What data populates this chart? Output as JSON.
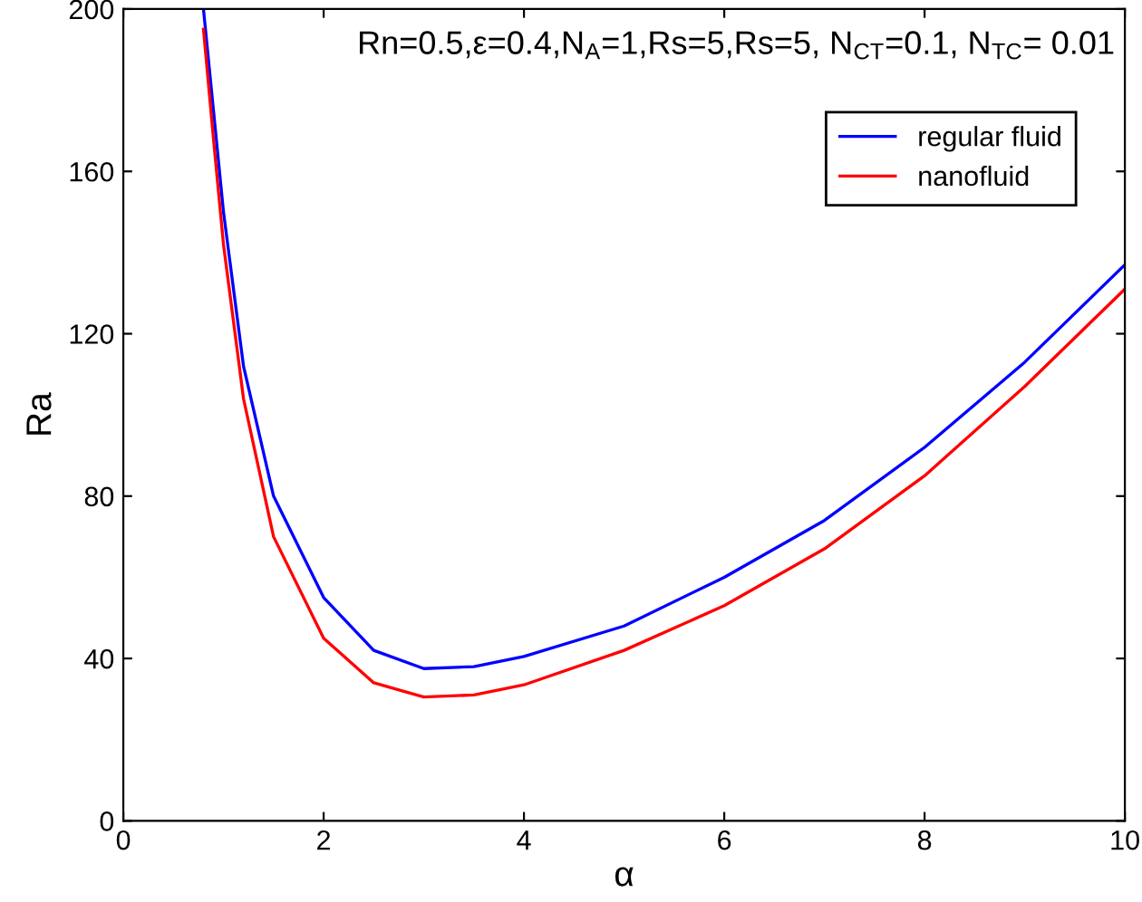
{
  "chart_data": {
    "type": "line",
    "xlabel": "α",
    "ylabel": "Ra",
    "xlim": [
      0,
      10
    ],
    "ylim": [
      0,
      200
    ],
    "xticks": [
      0,
      2,
      4,
      6,
      8,
      10
    ],
    "yticks": [
      0,
      40,
      80,
      120,
      160,
      200
    ],
    "grid": false,
    "legend": "top right",
    "annotations": [
      "Rn=0.5,ε=0.4,N$_{A}$=1,Rs=5,Rs=5, N$_{CT}$=0.1, N$_{TC}$= 0.01"
    ],
    "x": [
      0.8,
      0.9,
      1.0,
      1.2,
      1.5,
      2.0,
      2.5,
      3.0,
      3.5,
      4,
      5,
      6,
      7,
      8,
      9,
      10
    ],
    "series": [
      {
        "name": "regular fluid",
        "color": "#0000ff",
        "values": [
          200,
          175,
          150,
          112,
          80,
          55,
          42,
          37.5,
          38,
          40.5,
          48,
          60,
          74,
          92,
          113,
          137
        ]
      },
      {
        "name": "nanofluid",
        "color": "#ff0000",
        "values": [
          195,
          168,
          142,
          104,
          70,
          45,
          34,
          30.5,
          31,
          33.5,
          42,
          53,
          67,
          85,
          107,
          131
        ]
      }
    ]
  }
}
